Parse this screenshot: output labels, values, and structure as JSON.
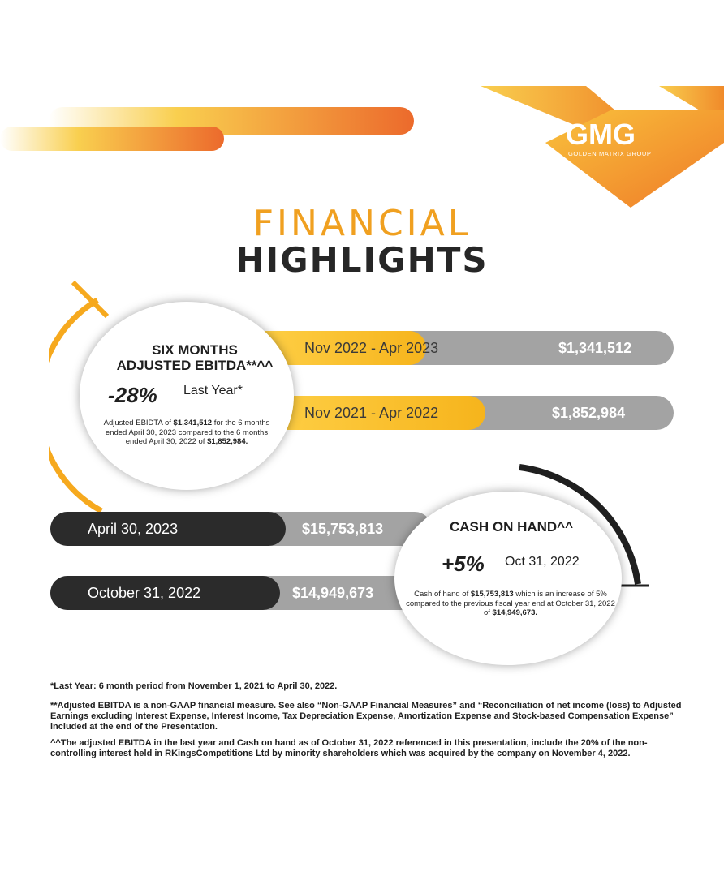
{
  "brand": {
    "logo_text": "GMG",
    "logo_subtext": "GOLDEN MATRIX GROUP",
    "colors": {
      "gold": "#f5b21e",
      "orange": "#ec6a2c",
      "gray": "#a3a3a3",
      "dark": "#2b2b2b"
    }
  },
  "title": {
    "line1": "FINANCIAL",
    "line2": "HIGHLIGHTS"
  },
  "ebitda": {
    "heading_line1": "SIX MONTHS",
    "heading_line2": "ADJUSTED EBITDA**^^",
    "pct": "-28%",
    "pct_label": "Last Year*",
    "desc_pre": "Adjusted EBIDTA of ",
    "desc_val1": "$1,341,512",
    "desc_mid": " for the 6 months ended April 30, 2023 compared to the 6 months ended April 30, 2022 of ",
    "desc_val2": "$1,852,984.",
    "bars": [
      {
        "label": "Nov 2022 - Apr 2023",
        "value": "$1,341,512",
        "amount": 1341512
      },
      {
        "label": "Nov 2021 - Apr 2022",
        "value": "$1,852,984",
        "amount": 1852984
      }
    ]
  },
  "cash": {
    "heading": "CASH ON HAND^^",
    "pct": "+5%",
    "pct_label": "Oct 31, 2022",
    "desc_pre": "Cash of hand of ",
    "desc_val1": "$15,753,813",
    "desc_mid": " which is an increase of 5% compared to the previous fiscal year end at October 31, 2022 of ",
    "desc_val2": "$14,949,673.",
    "bars": [
      {
        "label": "April 30, 2023",
        "value": "$15,753,813",
        "amount": 15753813
      },
      {
        "label": "October 31, 2022",
        "value": "$14,949,673",
        "amount": 14949673
      }
    ]
  },
  "footnotes": [
    "*Last Year: 6 month period from November 1, 2021 to April 30, 2022.",
    "**Adjusted EBITDA is a non-GAAP financial measure. See also “Non-GAAP Financial Measures” and “Reconciliation of net income (loss) to Adjusted Earnings excluding Interest Expense, Interest Income, Tax Depreciation Expense, Amortization Expense and Stock-based Compensation Expense” included at the end of the Presentation.",
    "^^The adjusted EBITDA in the last year and Cash on hand as of October 31, 2022 referenced in this presentation, include the 20% of the non-controlling interest held in RKingsCompetitions Ltd by minority shareholders which was acquired by the company on November 4, 2022."
  ]
}
